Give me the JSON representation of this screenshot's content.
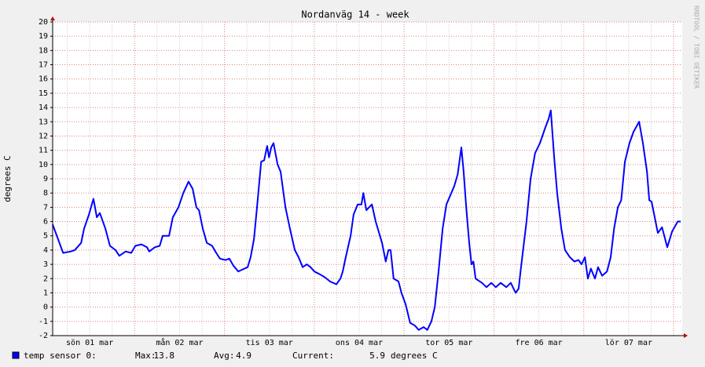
{
  "chart_data": {
    "type": "line",
    "title": "Nordanväg 14 - week",
    "y_label": "degrees C",
    "watermark": "RRDTOOL / TOBI OETIKER",
    "x": [
      2.1,
      4.9,
      6.9,
      8.0,
      9.7,
      10.5,
      11.8,
      13.0,
      13.9,
      14.7,
      16.2,
      17.4,
      18.9,
      19.9,
      21.6,
      23.1,
      24.2,
      25.8,
      27.3,
      27.9,
      29.4,
      30.7,
      31.5,
      33.2,
      34.2,
      35.7,
      37.0,
      38.4,
      39.5,
      40.5,
      41.2,
      42.2,
      43.3,
      44.7,
      45.8,
      46.8,
      48.3,
      49.3,
      50.4,
      51.7,
      52.5,
      54.2,
      55.0,
      55.9,
      56.7,
      57.8,
      58.6,
      59.4,
      59.9,
      60.5,
      61.1,
      62.2,
      63.0,
      64.3,
      65.5,
      66.8,
      67.8,
      68.9,
      70.0,
      71.0,
      72.0,
      73.5,
      74.8,
      76.2,
      77.9,
      79.0,
      79.6,
      80.4,
      81.7,
      82.5,
      83.6,
      84.6,
      85.1,
      85.9,
      87.4,
      88.4,
      90.1,
      91.1,
      91.8,
      92.4,
      93.2,
      94.5,
      95.3,
      96.4,
      97.6,
      98.9,
      99.9,
      101.2,
      102.2,
      103.3,
      104.2,
      105.2,
      106.3,
      107.3,
      108.6,
      109.4,
      110.3,
      111.3,
      111.9,
      112.6,
      113.4,
      114.0,
      114.5,
      115.1,
      116.8,
      118.0,
      119.3,
      120.5,
      121.8,
      123.3,
      124.5,
      125.8,
      126.6,
      127.1,
      127.7,
      128.7,
      129.8,
      131.0,
      132.3,
      133.6,
      134.6,
      135.2,
      136.1,
      136.9,
      138.0,
      139.0,
      140.3,
      141.5,
      142.6,
      143.4,
      144.3,
      145.1,
      145.9,
      147.0,
      147.8,
      148.9,
      150.2,
      151.2,
      152.1,
      153.1,
      154.0,
      155.0,
      156.2,
      157.3,
      158.8,
      159.8,
      160.9,
      161.5,
      162.1,
      162.8,
      163.8,
      164.9,
      166.3,
      167.6,
      169.1,
      169.9
    ],
    "series": [
      {
        "name": "temp sensor 0:",
        "color": "#0000ff",
        "values": [
          5.8,
          3.8,
          3.9,
          4.0,
          4.5,
          5.5,
          6.5,
          7.6,
          6.3,
          6.6,
          5.5,
          4.3,
          4.0,
          3.6,
          3.9,
          3.8,
          4.3,
          4.4,
          4.2,
          3.9,
          4.2,
          4.3,
          5.0,
          5.0,
          6.3,
          7.0,
          8.0,
          8.8,
          8.3,
          7.0,
          6.8,
          5.5,
          4.5,
          4.3,
          3.8,
          3.4,
          3.3,
          3.4,
          2.9,
          2.5,
          2.6,
          2.8,
          3.5,
          4.8,
          7.0,
          10.2,
          10.3,
          11.3,
          10.5,
          11.2,
          11.5,
          10.0,
          9.5,
          7.0,
          5.5,
          4.0,
          3.5,
          2.8,
          3.0,
          2.8,
          2.5,
          2.3,
          2.1,
          1.8,
          1.6,
          2.0,
          2.5,
          3.5,
          5.0,
          6.5,
          7.2,
          7.2,
          8.0,
          6.8,
          7.2,
          6.0,
          4.5,
          3.2,
          4.0,
          4.0,
          2.0,
          1.8,
          1.0,
          0.2,
          -1.1,
          -1.3,
          -1.6,
          -1.4,
          -1.6,
          -1.0,
          0.0,
          2.5,
          5.5,
          7.2,
          8.0,
          8.5,
          9.3,
          11.2,
          9.5,
          7.0,
          4.5,
          3.0,
          3.2,
          2.0,
          1.7,
          1.4,
          1.7,
          1.4,
          1.7,
          1.4,
          1.7,
          1.0,
          1.3,
          2.5,
          3.8,
          6.0,
          9.0,
          10.8,
          11.5,
          12.5,
          13.2,
          13.8,
          10.5,
          8.0,
          5.5,
          4.0,
          3.5,
          3.2,
          3.3,
          3.0,
          3.5,
          2.0,
          2.7,
          2.0,
          2.8,
          2.2,
          2.5,
          3.5,
          5.5,
          7.0,
          7.5,
          10.2,
          11.5,
          12.3,
          13.0,
          11.5,
          9.5,
          7.5,
          7.4,
          6.5,
          5.2,
          5.6,
          4.2,
          5.3,
          6.0,
          6.0
        ]
      }
    ],
    "legend_stats": [
      {
        "label": "Max:",
        "value": 13.8
      },
      {
        "label": "Avg:",
        "value": 4.9
      },
      {
        "label": "Current:",
        "value": 5.9
      }
    ],
    "legend_unit": "degrees C",
    "xlim": [
      2.1,
      170.3
    ],
    "xticks": [
      {
        "value": 12,
        "label": "sön 01 mar"
      },
      {
        "value": 36,
        "label": "mån 02 mar"
      },
      {
        "value": 60,
        "label": "tis 03 mar"
      },
      {
        "value": 84,
        "label": "ons 04 mar"
      },
      {
        "value": 108,
        "label": "tor 05 mar"
      },
      {
        "value": 132,
        "label": "fre 06 mar"
      },
      {
        "value": 156,
        "label": "lör 07 mar"
      }
    ],
    "ylim": [
      -2,
      20
    ],
    "yticks": [
      -2,
      -1,
      0,
      1,
      2,
      3,
      4,
      5,
      6,
      7,
      8,
      9,
      10,
      11,
      12,
      13,
      14,
      15,
      16,
      17,
      18,
      19,
      20
    ],
    "grid": true
  }
}
